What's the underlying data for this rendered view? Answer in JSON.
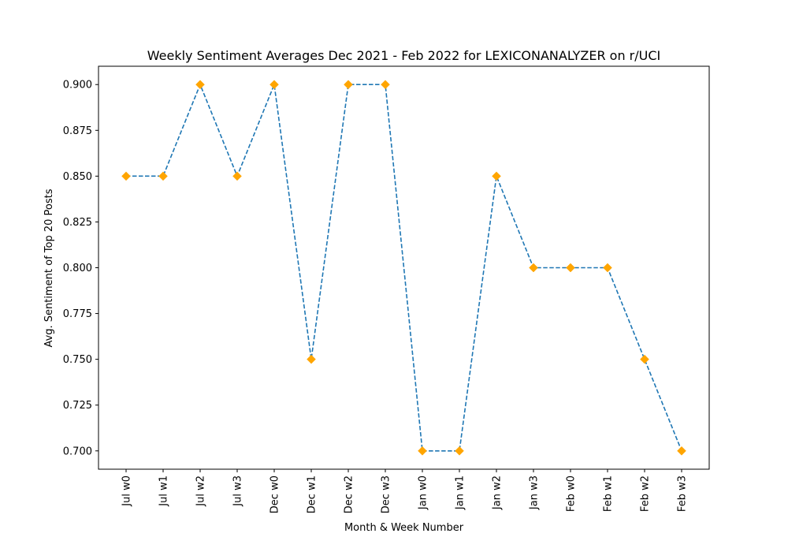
{
  "chart_data": {
    "type": "line",
    "title": "Weekly Sentiment Averages Dec 2021 - Feb 2022 for LEXICONANALYZER on r/UCI",
    "xlabel": "Month & Week Number",
    "ylabel": "Avg. Sentiment of Top 20 Posts",
    "categories": [
      "Jul w0",
      "Jul w1",
      "Jul w2",
      "Jul w3",
      "Dec w0",
      "Dec w1",
      "Dec w2",
      "Dec w3",
      "Jan w0",
      "Jan w1",
      "Jan w2",
      "Jan w3",
      "Feb w0",
      "Feb w1",
      "Feb w2",
      "Feb w3"
    ],
    "series": [
      {
        "values": [
          0.85,
          0.85,
          0.9,
          0.85,
          0.9,
          0.75,
          0.9,
          0.9,
          0.7,
          0.7,
          0.85,
          0.8,
          0.8,
          0.8,
          0.75,
          0.7
        ],
        "line_color": "#1f77b4",
        "line_style": "dashed",
        "marker": "diamond",
        "marker_color": "#ffa500"
      }
    ],
    "ylim": [
      0.69,
      0.91
    ],
    "yticks": [
      "0.700",
      "0.725",
      "0.750",
      "0.775",
      "0.800",
      "0.825",
      "0.850",
      "0.875",
      "0.900"
    ],
    "grid": false,
    "legend": "none"
  }
}
